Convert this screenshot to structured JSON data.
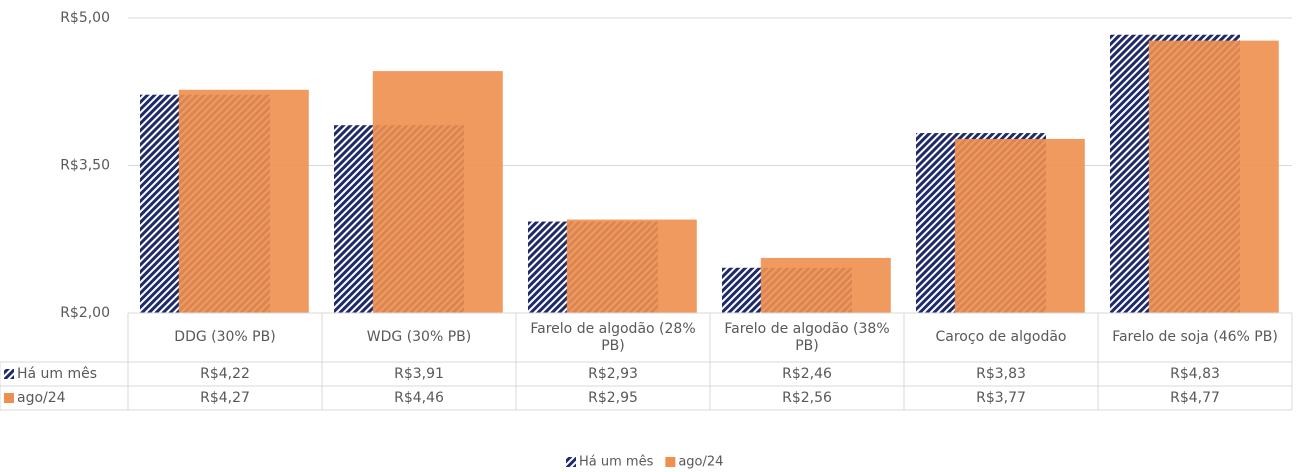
{
  "chart_data": {
    "type": "bar",
    "categories": [
      "DDG (30% PB)",
      "WDG (30% PB)",
      "Farelo de algodão (28% PB)",
      "Farelo de algodão (38% PB)",
      "Caroço de algodão",
      "Farelo de soja (46% PB)"
    ],
    "series": [
      {
        "name": "Há um mês",
        "color": "#1f2a6b",
        "pattern": "diagonal-stripes",
        "values": [
          4.22,
          3.91,
          2.93,
          2.46,
          3.83,
          4.83
        ],
        "value_labels": [
          "R$4,22",
          "R$3,91",
          "R$2,93",
          "R$2,46",
          "R$3,83",
          "R$4,83"
        ]
      },
      {
        "name": "ago/24",
        "color": "#ef8f4f",
        "values": [
          4.27,
          4.46,
          2.95,
          2.56,
          3.77,
          4.77
        ],
        "value_labels": [
          "R$4,27",
          "R$4,46",
          "R$2,95",
          "R$2,56",
          "R$3,77",
          "R$4,77"
        ]
      }
    ],
    "ylim": [
      2,
      5
    ],
    "yticks": [
      {
        "value": 2,
        "label": "R$2,00"
      },
      {
        "value": 3.5,
        "label": "R$3,50"
      },
      {
        "value": 5,
        "label": "R$5,00"
      }
    ],
    "grid": true,
    "legend": "bottom"
  }
}
